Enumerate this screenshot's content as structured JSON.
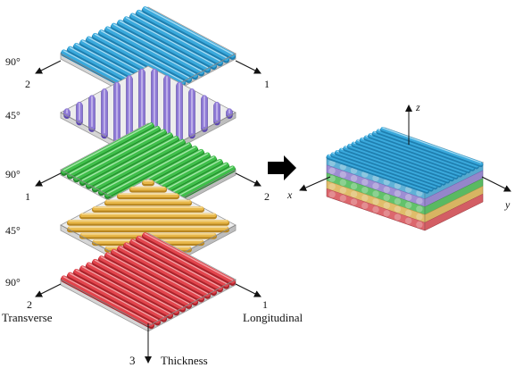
{
  "layers": [
    {
      "angle": "90°",
      "left_axis": "2",
      "right_axis": "1",
      "color": "#3aa9dc",
      "dark": "#1f7fb0",
      "light": "#a9dcf3",
      "orientation": "a"
    },
    {
      "angle": "45°",
      "color": "#8f7ad6",
      "dark": "#5b46ad",
      "light": "#cfc4f1",
      "orientation": "v"
    },
    {
      "angle": "90°",
      "left_axis": "1",
      "right_axis": "2",
      "color": "#3fbf4a",
      "dark": "#23892c",
      "light": "#a6e6a9",
      "orientation": "b"
    },
    {
      "angle": "45°",
      "color": "#e8b84a",
      "dark": "#b7851f",
      "light": "#f6dc9c",
      "orientation": "h"
    },
    {
      "angle": "90°",
      "left_axis": "2",
      "right_axis": "1",
      "color": "#e2454d",
      "dark": "#a9232b",
      "light": "#f3a3a6",
      "orientation": "a"
    }
  ],
  "axis_labels": {
    "transverse": "Transverse",
    "longitudinal": "Longitudinal",
    "thickness_num": "3",
    "thickness": "Thickness"
  },
  "assembled_axes": {
    "z": "z",
    "x": "x",
    "y": "y"
  },
  "arrow_color": "#000000"
}
